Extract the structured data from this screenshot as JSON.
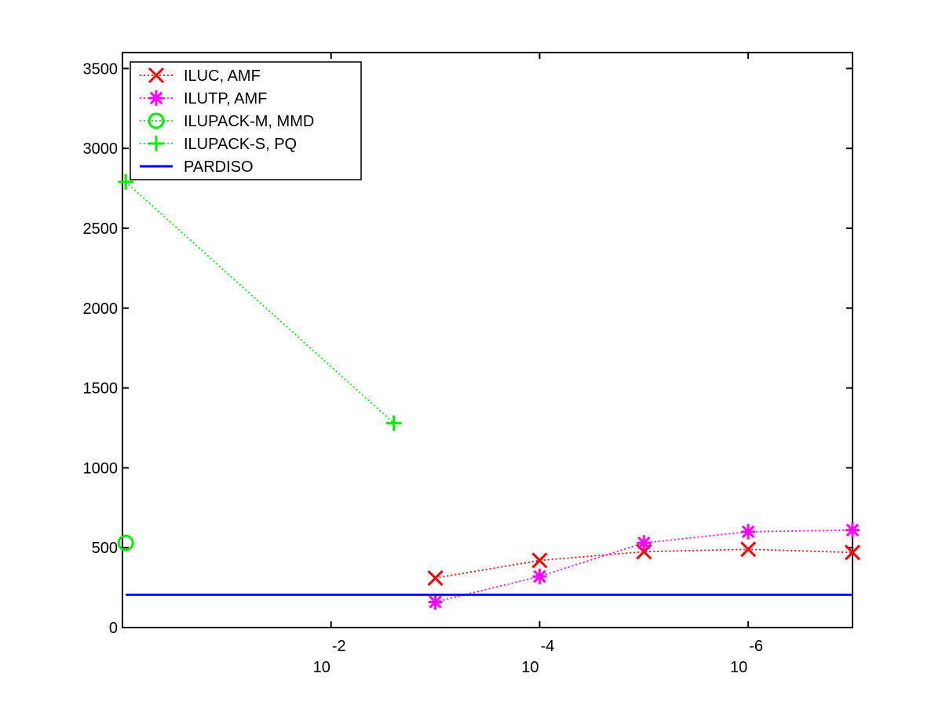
{
  "chart_data": {
    "type": "line",
    "title": "",
    "xlabel": "",
    "ylabel": "",
    "x_scale": "log",
    "x_direction": "reversed",
    "xlim": [
      1,
      1e-07
    ],
    "ylim": [
      0,
      3600
    ],
    "grid": false,
    "legend_placement": "top-left",
    "x_ticks": [
      {
        "value": 0.01,
        "base": "10",
        "exponent": "-2"
      },
      {
        "value": 0.0001,
        "base": "10",
        "exponent": "-4"
      },
      {
        "value": 1e-06,
        "base": "10",
        "exponent": "-6"
      }
    ],
    "y_ticks": [
      {
        "value": 0,
        "label": "0"
      },
      {
        "value": 500,
        "label": "500"
      },
      {
        "value": 1000,
        "label": "1000"
      },
      {
        "value": 1500,
        "label": "1500"
      },
      {
        "value": 2000,
        "label": "2000"
      },
      {
        "value": 2500,
        "label": "2500"
      },
      {
        "value": 3000,
        "label": "3000"
      },
      {
        "value": 3500,
        "label": "3500"
      }
    ],
    "series": [
      {
        "name": "ILUC, AMF",
        "color": "#ff0000",
        "marker": "x",
        "line": "dotted",
        "x": [
          0.001,
          0.0001,
          1e-05,
          1e-06,
          1e-07
        ],
        "y": [
          310,
          420,
          475,
          490,
          470
        ]
      },
      {
        "name": "ILUTP, AMF",
        "color": "#ff00ff",
        "marker": "asterisk",
        "line": "dotted",
        "x": [
          0.001,
          0.0001,
          1e-05,
          1e-06,
          1e-07
        ],
        "y": [
          160,
          320,
          530,
          600,
          610
        ]
      },
      {
        "name": "ILUPACK-M, MMD",
        "color": "#00ee00",
        "marker": "circle",
        "line": "dotted",
        "x": [
          0.93
        ],
        "y": [
          530
        ]
      },
      {
        "name": "ILUPACK-S, PQ",
        "color": "#00ee00",
        "marker": "plus",
        "line": "dotted",
        "x": [
          0.93,
          0.0025
        ],
        "y": [
          2790,
          1280
        ]
      },
      {
        "name": "PARDISO",
        "color": "#0000ff",
        "marker": "none",
        "line": "solid",
        "x": [
          0.93,
          1e-07
        ],
        "y": [
          205,
          205
        ]
      }
    ]
  }
}
